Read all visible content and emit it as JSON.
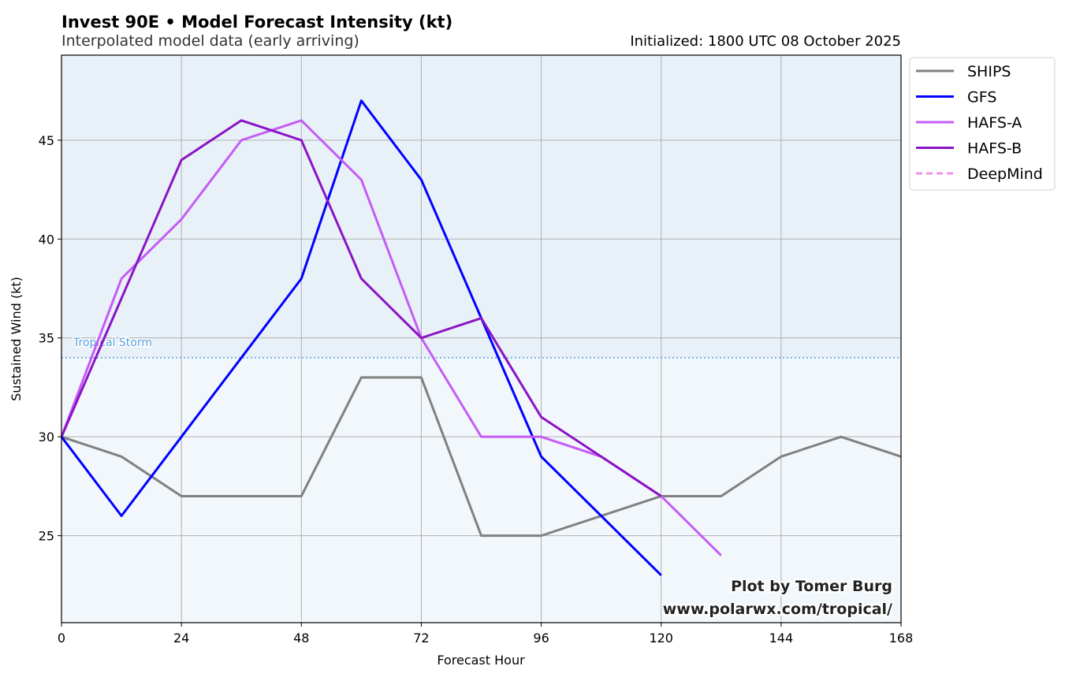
{
  "chart_data": {
    "type": "line",
    "title": "Invest 90E • Model Forecast Intensity (kt)",
    "subtitle": "Interpolated model data (early arriving)",
    "initialized": "Initialized: 1800 UTC 08 October 2025",
    "xlabel": "Forecast Hour",
    "ylabel": "Sustained Wind (kt)",
    "xlim": [
      0,
      168
    ],
    "ylim": [
      20.6,
      49.3
    ],
    "xticks": [
      0,
      24,
      48,
      72,
      96,
      120,
      144,
      168
    ],
    "yticks": [
      25,
      30,
      35,
      40,
      45
    ],
    "grid": true,
    "legend_position": "outside-top-right",
    "threshold": {
      "label": "Tropical Storm",
      "value": 34,
      "color": "#5a9fe0"
    },
    "background": {
      "above_threshold": "#e8f1f8",
      "below_threshold": "#f2f7fb"
    },
    "credit": [
      "Plot by Tomer Burg",
      "www.polarwx.com/tropical/"
    ],
    "series": [
      {
        "name": "SHIPS",
        "color": "#808080",
        "dashed": false,
        "x": [
          0,
          12,
          24,
          36,
          48,
          60,
          72,
          84,
          96,
          108,
          120,
          132,
          144,
          156,
          168
        ],
        "y": [
          30,
          29,
          27,
          27,
          27,
          33,
          33,
          25,
          25,
          26,
          27,
          27,
          29,
          30,
          29
        ]
      },
      {
        "name": "GFS",
        "color": "#0000ff",
        "dashed": false,
        "x": [
          0,
          12,
          24,
          36,
          48,
          60,
          72,
          84,
          96,
          108,
          120
        ],
        "y": [
          30,
          26,
          30,
          34,
          38,
          47,
          43,
          36,
          29,
          26,
          23
        ]
      },
      {
        "name": "HAFS-A",
        "color": "#c55cf5",
        "dashed": false,
        "x": [
          0,
          12,
          24,
          36,
          48,
          60,
          72,
          84,
          96,
          108,
          120,
          132
        ],
        "y": [
          30,
          38,
          41,
          45,
          46,
          43,
          35,
          30,
          30,
          29,
          27,
          24
        ]
      },
      {
        "name": "HAFS-B",
        "color": "#8b14c4",
        "dashed": false,
        "x": [
          0,
          12,
          24,
          36,
          48,
          60,
          72,
          84,
          96,
          108,
          120
        ],
        "y": [
          30,
          37,
          44,
          46,
          45,
          38,
          35,
          36,
          31,
          29,
          27
        ]
      },
      {
        "name": "DeepMind",
        "color": "#f090e8",
        "dashed": true,
        "x": [],
        "y": []
      }
    ]
  }
}
